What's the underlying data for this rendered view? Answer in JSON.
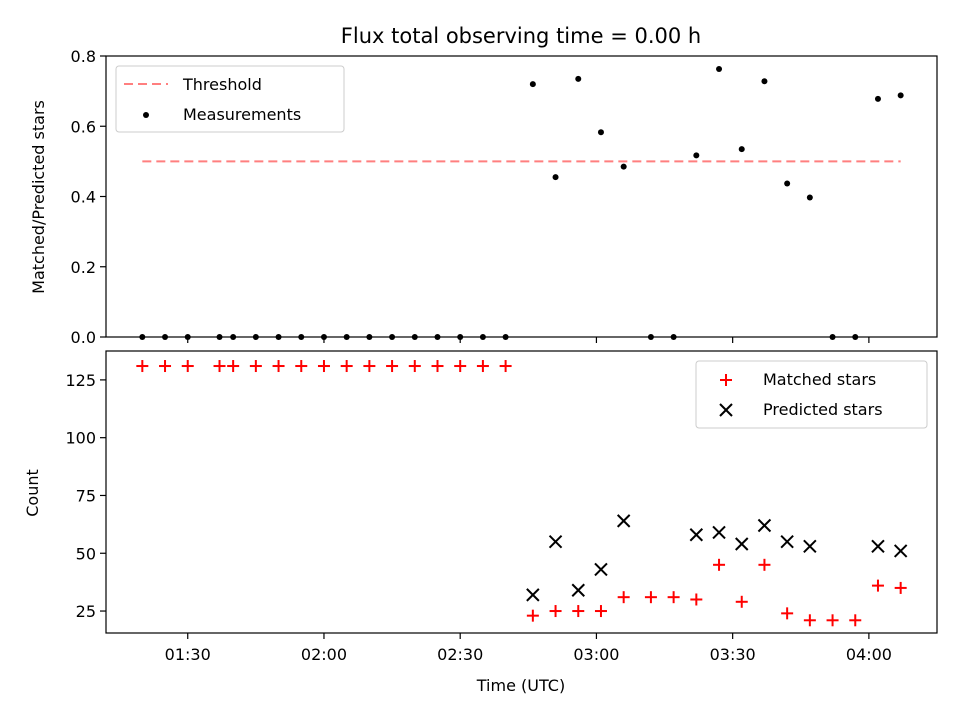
{
  "chart_data": [
    {
      "type": "scatter",
      "title": "Flux total observing time = 0.00 h",
      "ylabel": "Matched/Predicted stars",
      "ylim": [
        0,
        0.8
      ],
      "yticks": [
        0,
        0.2,
        0.4,
        0.6,
        0.8
      ],
      "ytick_labels": [
        "0.0",
        "0.2",
        "0.4",
        "0.6",
        "0.8"
      ],
      "legend": {
        "placement": "top-left",
        "entries": [
          "Threshold",
          "Measurements"
        ]
      },
      "threshold": {
        "name": "Threshold",
        "value": 0.5,
        "color": "#ff7f7f",
        "style": "dashed",
        "x_start": "01:20",
        "x_end": "04:07"
      },
      "series": [
        {
          "name": "Measurements",
          "color": "#000000",
          "marker": "dot",
          "x": [
            "01:20",
            "01:25",
            "01:30",
            "01:37",
            "01:40",
            "01:45",
            "01:50",
            "01:55",
            "02:00",
            "02:05",
            "02:10",
            "02:15",
            "02:20",
            "02:25",
            "02:30",
            "02:35",
            "02:40",
            "02:46",
            "02:51",
            "02:56",
            "03:01",
            "03:06",
            "03:12",
            "03:17",
            "03:22",
            "03:27",
            "03:32",
            "03:37",
            "03:42",
            "03:47",
            "03:52",
            "03:57",
            "04:02",
            "04:07"
          ],
          "y": [
            0,
            0,
            0,
            0,
            0,
            0,
            0,
            0,
            0,
            0,
            0,
            0,
            0,
            0,
            0,
            0,
            0,
            0.72,
            0.455,
            0.735,
            0.583,
            0.485,
            0,
            0,
            0.517,
            0.763,
            0.535,
            0.728,
            0.437,
            0.397,
            0,
            0,
            0.678,
            0.688
          ]
        }
      ]
    },
    {
      "type": "scatter",
      "xlabel": "Time (UTC)",
      "ylabel": "Count",
      "ylim": [
        15.5,
        137.5
      ],
      "yticks": [
        25,
        50,
        75,
        100,
        125
      ],
      "ytick_labels": [
        "25",
        "50",
        "75",
        "100",
        "125"
      ],
      "xlim": [
        "01:12",
        "04:15"
      ],
      "xticks": [
        "01:30",
        "02:00",
        "02:30",
        "03:00",
        "03:30",
        "04:00"
      ],
      "legend": {
        "placement": "top-right",
        "entries": [
          "Matched stars",
          "Predicted stars"
        ]
      },
      "series": [
        {
          "name": "Matched stars",
          "color": "#ff0000",
          "marker": "plus",
          "x": [
            "01:20",
            "01:25",
            "01:30",
            "01:37",
            "01:40",
            "01:45",
            "01:50",
            "01:55",
            "02:00",
            "02:05",
            "02:10",
            "02:15",
            "02:20",
            "02:25",
            "02:30",
            "02:35",
            "02:40",
            "02:46",
            "02:51",
            "02:56",
            "03:01",
            "03:06",
            "03:12",
            "03:17",
            "03:22",
            "03:27",
            "03:32",
            "03:37",
            "03:42",
            "03:47",
            "03:52",
            "03:57",
            "04:02",
            "04:07"
          ],
          "y": [
            131,
            131,
            131,
            131,
            131,
            131,
            131,
            131,
            131,
            131,
            131,
            131,
            131,
            131,
            131,
            131,
            131,
            23,
            25,
            25,
            25,
            31,
            31,
            31,
            30,
            45,
            29,
            45,
            24,
            21,
            21,
            21,
            36,
            35
          ]
        },
        {
          "name": "Predicted stars",
          "color": "#000000",
          "marker": "x",
          "x": [
            "02:46",
            "02:51",
            "02:56",
            "03:01",
            "03:06",
            "03:22",
            "03:27",
            "03:32",
            "03:37",
            "03:42",
            "03:47",
            "04:02",
            "04:07"
          ],
          "y": [
            32,
            55,
            34,
            43,
            64,
            58,
            59,
            54,
            62,
            55,
            53,
            53,
            51
          ]
        }
      ]
    }
  ]
}
